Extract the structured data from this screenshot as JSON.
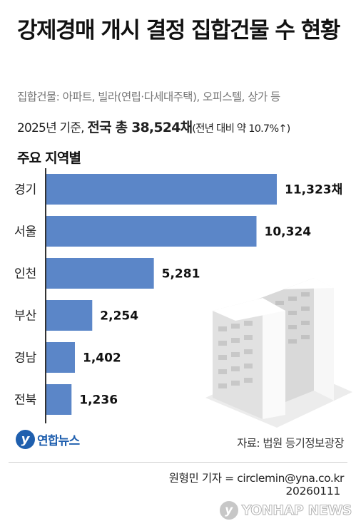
{
  "header": {
    "title": "강제경매 개시 결정 집합건물 수 현황",
    "subtitle": "집합건물: 아파트, 빌라(연립·다세대주택), 오피스텔, 상가 등"
  },
  "summary": {
    "prefix": "2025년 기준, ",
    "strong": "전국 총 38,524채",
    "suffix": "(전년 대비 약 10.7%↑)"
  },
  "section_title": "주요 지역별",
  "colors": {
    "bar": "#5b86c8",
    "axis": "#333333",
    "brand": "#1f5fae"
  },
  "chart_data": {
    "type": "bar",
    "orientation": "horizontal",
    "title": "주요 지역별",
    "categories": [
      "경기",
      "서울",
      "인천",
      "부산",
      "경남",
      "전북"
    ],
    "values": [
      11323,
      10324,
      5281,
      2254,
      1402,
      1236
    ],
    "value_labels": [
      "11,323채",
      "10,324",
      "5,281",
      "2,254",
      "1,402",
      "1,236"
    ],
    "unit": "채",
    "xlim": [
      0,
      11323
    ],
    "grid": false,
    "legend": "none"
  },
  "illustration": {
    "icon": "apartment-buildings-icon"
  },
  "footer": {
    "logo_mark": "y",
    "logo_text": "연합뉴스",
    "source": "자료: 법원 등기정보광장",
    "reporter": "원형민 기자 = circlemin@yna.co.kr",
    "date": "20260111",
    "watermark_mark": "y",
    "watermark_text": "YONHAP NEWS"
  }
}
